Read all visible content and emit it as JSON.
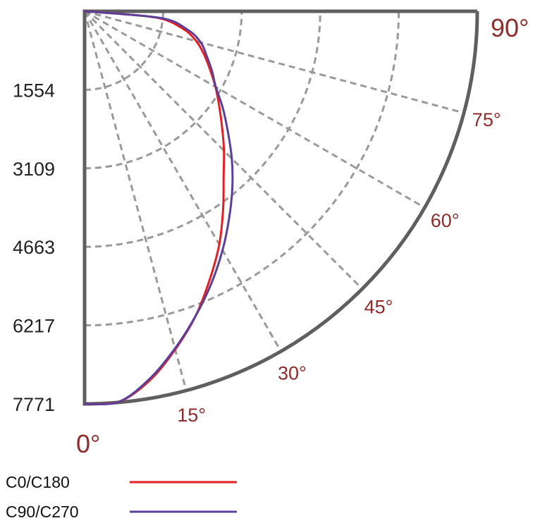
{
  "chart_data": {
    "type": "line",
    "subtype": "polar-intensity-distribution",
    "angle_unit": "deg",
    "angular_range": [
      0,
      90
    ],
    "radial_range": [
      0,
      7771
    ],
    "radial_tick_labels": [
      "1554",
      "3109",
      "4663",
      "6217",
      "7771"
    ],
    "angle_tick_labels": [
      {
        "angle": 0,
        "text": "0°",
        "big": true
      },
      {
        "angle": 15,
        "text": "15°",
        "big": false
      },
      {
        "angle": 30,
        "text": "30°",
        "big": false
      },
      {
        "angle": 45,
        "text": "45°",
        "big": false
      },
      {
        "angle": 60,
        "text": "60°",
        "big": false
      },
      {
        "angle": 75,
        "text": "75°",
        "big": false
      },
      {
        "angle": 90,
        "text": "90°",
        "big": true
      }
    ],
    "grid": true,
    "legend_position": "bottom-left",
    "series": [
      {
        "name": "C0/C180",
        "color": "#e31e24",
        "points": [
          [
            0,
            7771
          ],
          [
            5,
            7760
          ],
          [
            10,
            7420
          ],
          [
            15,
            6930
          ],
          [
            20,
            6420
          ],
          [
            25,
            5860
          ],
          [
            30,
            5330
          ],
          [
            35,
            4780
          ],
          [
            40,
            4280
          ],
          [
            45,
            3900
          ],
          [
            50,
            3550
          ],
          [
            55,
            3250
          ],
          [
            60,
            2990
          ],
          [
            65,
            2740
          ],
          [
            70,
            2520
          ],
          [
            75,
            2290
          ],
          [
            80,
            1970
          ],
          [
            85,
            1400
          ],
          [
            90,
            0
          ]
        ]
      },
      {
        "name": "C90/C270",
        "color": "#5b3f99",
        "points": [
          [
            0,
            7771
          ],
          [
            5,
            7760
          ],
          [
            10,
            7390
          ],
          [
            15,
            6910
          ],
          [
            20,
            6420
          ],
          [
            25,
            5940
          ],
          [
            30,
            5460
          ],
          [
            35,
            4990
          ],
          [
            40,
            4550
          ],
          [
            45,
            4120
          ],
          [
            50,
            3700
          ],
          [
            55,
            3340
          ],
          [
            60,
            3000
          ],
          [
            65,
            2780
          ],
          [
            70,
            2570
          ],
          [
            75,
            2380
          ],
          [
            80,
            2060
          ],
          [
            85,
            1500
          ],
          [
            90,
            0
          ]
        ]
      }
    ],
    "colors": {
      "frame": "#5f5f5f",
      "grid": "#9a9a9a",
      "angle_label": "#8e2b2b"
    }
  }
}
